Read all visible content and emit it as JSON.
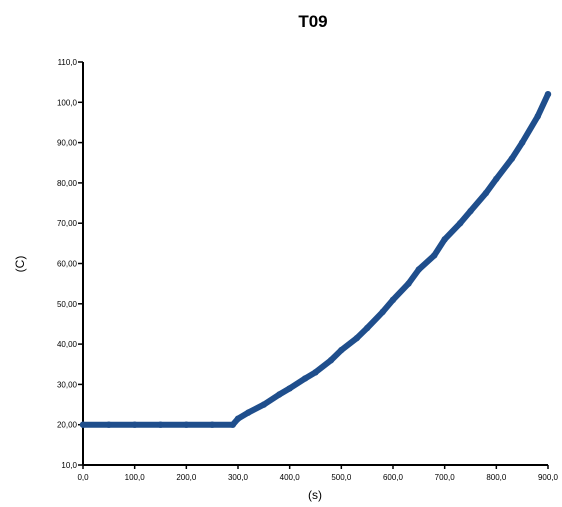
{
  "chart_data": {
    "type": "line",
    "title": "T09",
    "xlabel": "(s)",
    "ylabel": "(C)",
    "xlim": [
      0,
      900
    ],
    "ylim": [
      10,
      110
    ],
    "x_ticks": [
      0,
      100,
      200,
      300,
      400,
      500,
      600,
      700,
      800,
      900
    ],
    "x_tick_labels": [
      "0,0",
      "100,0",
      "200,0",
      "300,0",
      "400,0",
      "500,0",
      "600,0",
      "700,0",
      "800,0",
      "900,0"
    ],
    "y_ticks": [
      10,
      20,
      30,
      40,
      50,
      60,
      70,
      80,
      90,
      100,
      110
    ],
    "y_tick_labels": [
      "10,0",
      "20,00",
      "30,00",
      "40,00",
      "50,00",
      "60,00",
      "70,00",
      "80,00",
      "90,00",
      "100,0",
      "110,0"
    ],
    "grid": false,
    "legend": "none",
    "series": [
      {
        "color": "#1f4e8c",
        "x": [
          0,
          50,
          100,
          150,
          200,
          250,
          290,
          300,
          320,
          350,
          380,
          400,
          430,
          450,
          480,
          500,
          530,
          550,
          580,
          600,
          630,
          650,
          680,
          700,
          730,
          750,
          780,
          800,
          830,
          850,
          880,
          900
        ],
        "y": [
          20,
          20,
          20,
          20,
          20,
          20,
          20,
          21.5,
          23,
          25,
          27.5,
          29,
          31.5,
          33,
          36,
          38.5,
          41.5,
          44,
          48,
          51,
          55,
          58.5,
          62,
          66,
          70,
          73,
          77.5,
          81,
          86,
          90,
          96.5,
          102
        ]
      }
    ]
  }
}
